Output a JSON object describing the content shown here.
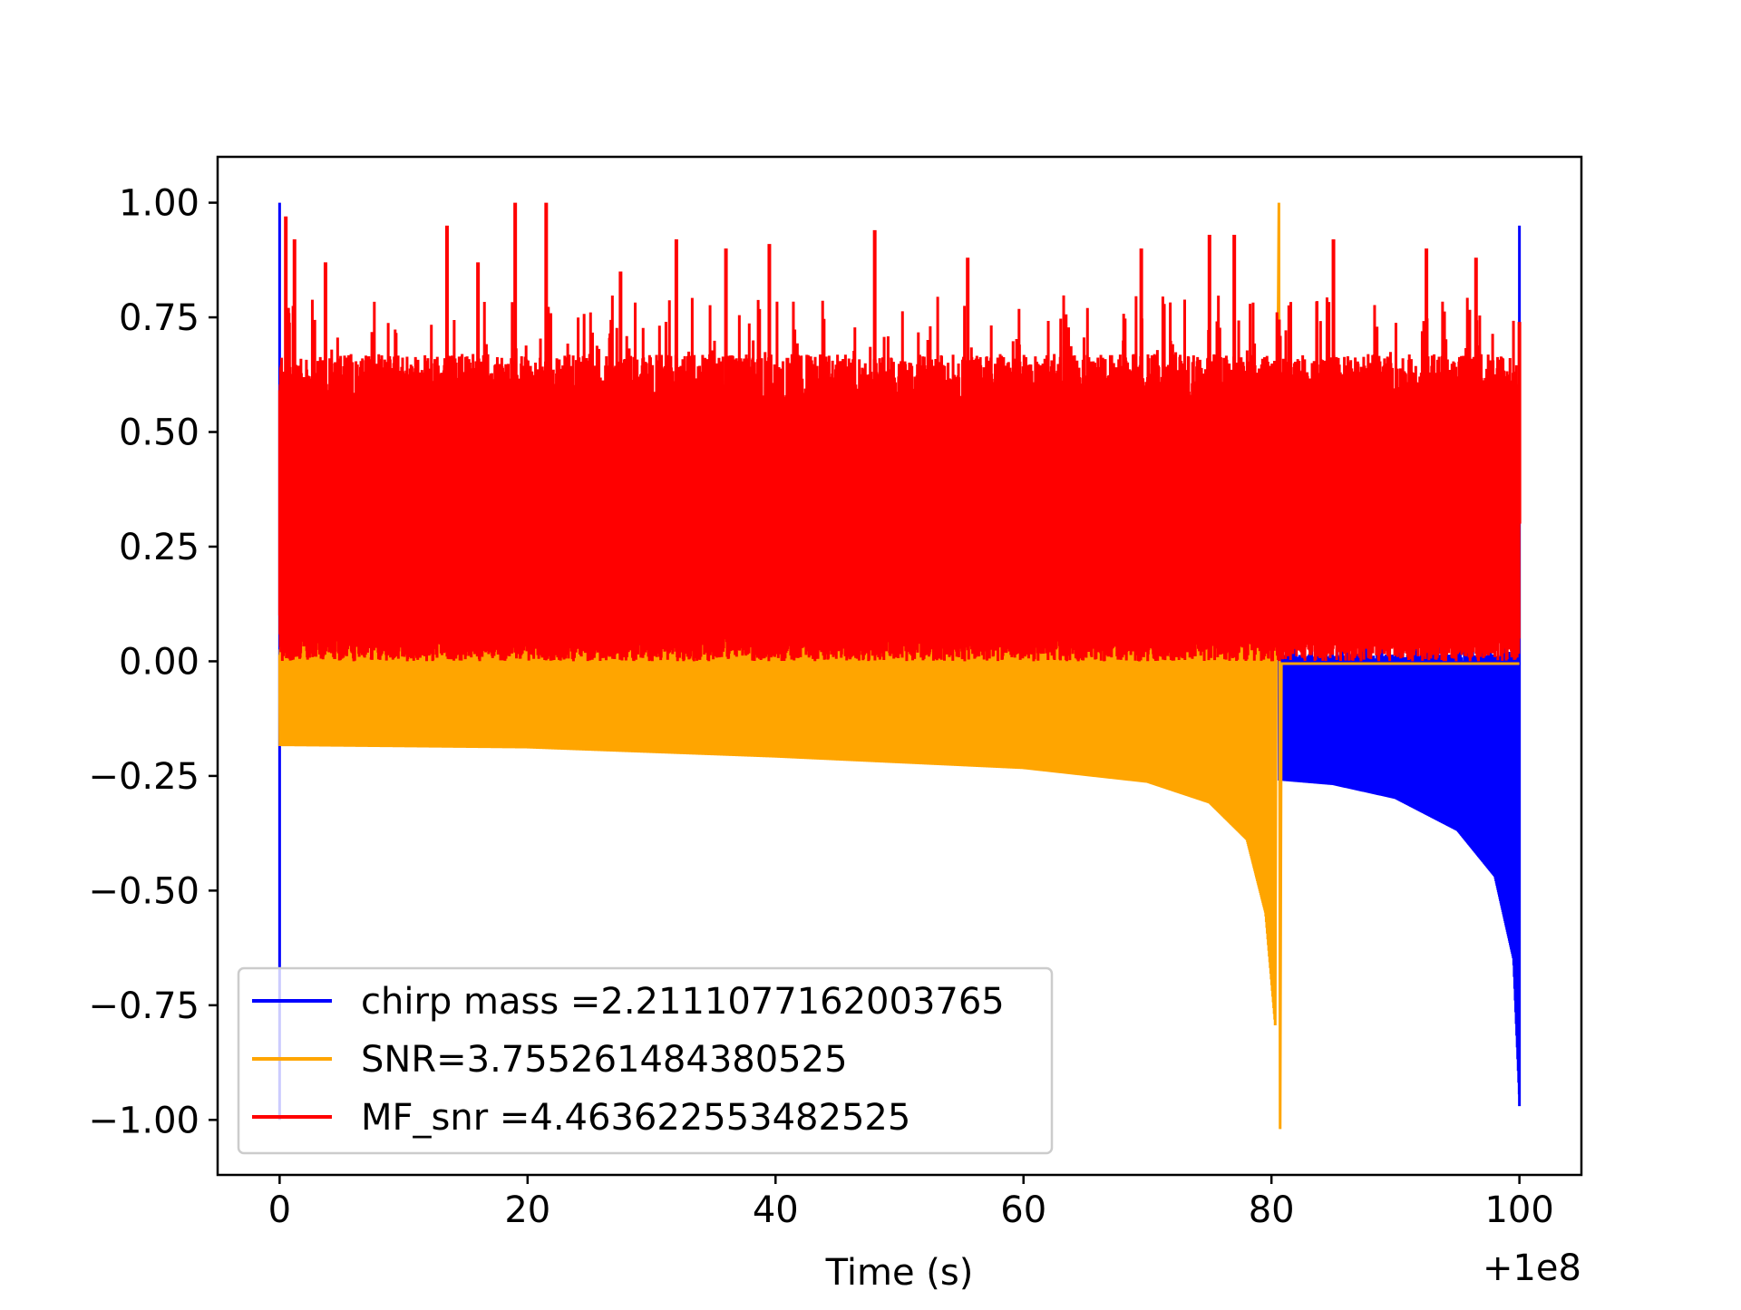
{
  "chart_data": {
    "type": "line",
    "title": "",
    "xlabel": "Time (s)",
    "ylabel": "",
    "x_offset_label": "+1e8",
    "xlim": [
      -5,
      105
    ],
    "ylim": [
      -1.12,
      1.1
    ],
    "x_ticks": [
      0,
      20,
      40,
      60,
      80,
      100
    ],
    "x_tick_labels": [
      "0",
      "20",
      "40",
      "60",
      "80",
      "100"
    ],
    "y_ticks": [
      1.0,
      0.75,
      0.5,
      0.25,
      0.0,
      -0.25,
      -0.5,
      -0.75,
      -1.0
    ],
    "y_tick_labels": [
      "1.00",
      "0.75",
      "0.50",
      "0.25",
      "0.00",
      "−0.25",
      "−0.50",
      "−0.75",
      "−1.00"
    ],
    "grid": false,
    "legend_placement": "lower-left",
    "series": [
      {
        "name": "chirp mass =2.2111077162003765",
        "color": "#0000ff",
        "x_range": [
          0,
          100
        ],
        "peak": {
          "x": 0,
          "y": 1.0,
          "min_y": -1.0
        },
        "noisy_segment": {
          "x": [
            80.6,
            100
          ],
          "upper_base": 0.0,
          "upper_spikes_max": 0.05,
          "lower_envelope": [
            [
              80.6,
              -0.26
            ],
            [
              85,
              -0.27
            ],
            [
              90,
              -0.3
            ],
            [
              95,
              -0.37
            ],
            [
              98,
              -0.47
            ],
            [
              99.5,
              -0.65
            ],
            [
              100,
              -0.97
            ]
          ]
        },
        "end_spike": {
          "x": 100,
          "max": 0.95,
          "min": -0.97
        }
      },
      {
        "name": "SNR=3.755261484380525",
        "color": "#ffa500",
        "x_range": [
          0,
          100
        ],
        "upper_envelope_range": [
          0.0,
          0.07
        ],
        "lower_envelope": [
          [
            0,
            -0.185
          ],
          [
            20,
            -0.19
          ],
          [
            40,
            -0.21
          ],
          [
            60,
            -0.235
          ],
          [
            70,
            -0.265
          ],
          [
            75,
            -0.31
          ],
          [
            78,
            -0.39
          ],
          [
            79.5,
            -0.55
          ],
          [
            80.3,
            -0.8
          ],
          [
            80.6,
            -1.02
          ]
        ],
        "peak": {
          "x": 80.6,
          "y": 1.0
        },
        "after_merger_value": -0.005
      },
      {
        "name": "MF_snr =4.463622553482525",
        "color": "#ff0000",
        "x_range": [
          0,
          100
        ],
        "lower_envelope_range": [
          0.0,
          0.06
        ],
        "upper_envelope_range": [
          0.55,
          1.0
        ],
        "spikes": [
          [
            0.5,
            0.97
          ],
          [
            1.2,
            0.92
          ],
          [
            3.7,
            0.87
          ],
          [
            13.5,
            0.95
          ],
          [
            16,
            0.87
          ],
          [
            19,
            1.0
          ],
          [
            21.5,
            1.0
          ],
          [
            27.5,
            0.85
          ],
          [
            32,
            0.92
          ],
          [
            36,
            0.9
          ],
          [
            39.5,
            0.91
          ],
          [
            48,
            0.94
          ],
          [
            55.5,
            0.88
          ],
          [
            69.5,
            0.9
          ],
          [
            75,
            0.93
          ],
          [
            77,
            0.93
          ],
          [
            85,
            0.92
          ],
          [
            92.5,
            0.9
          ],
          [
            96.5,
            0.88
          ],
          [
            100,
            0.74
          ]
        ]
      }
    ]
  }
}
